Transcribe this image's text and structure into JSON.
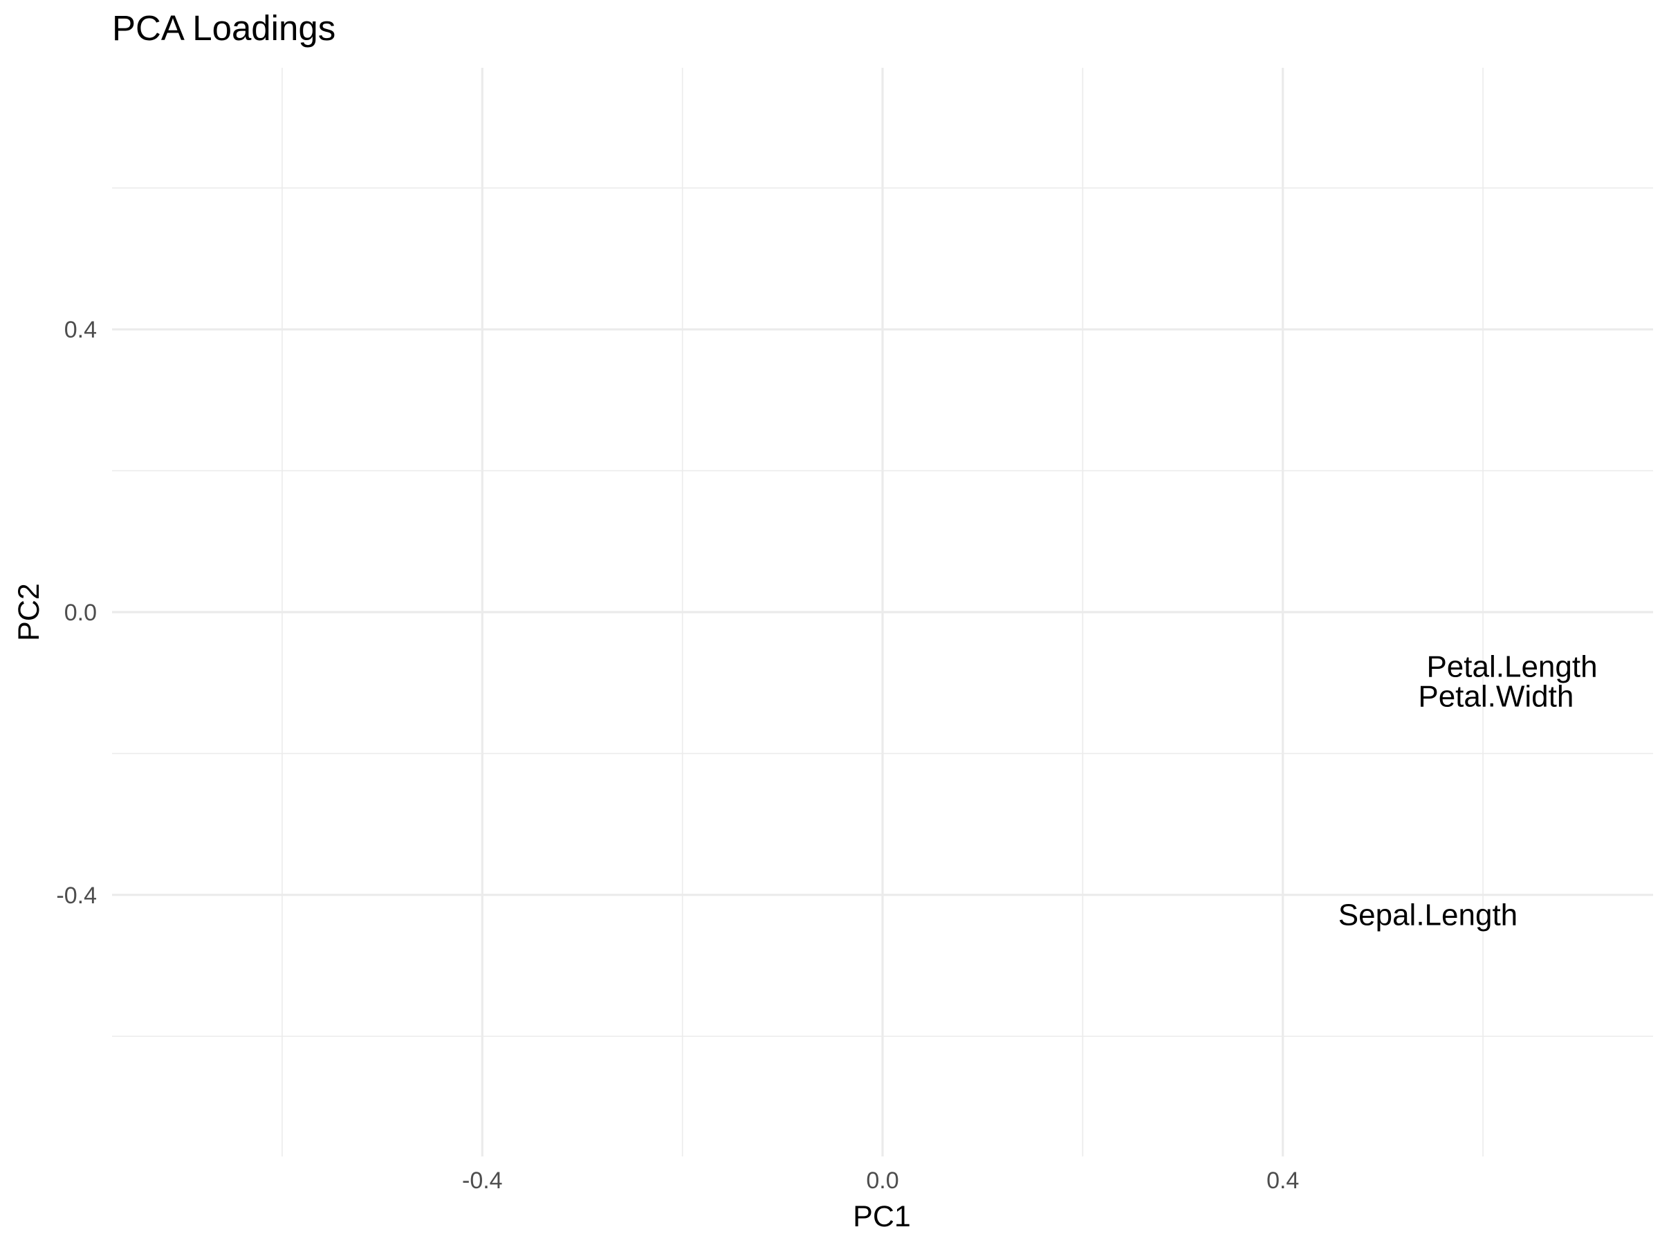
{
  "chart_data": {
    "type": "scatter",
    "title": "PCA Loadings",
    "xlabel": "PC1",
    "ylabel": "PC2",
    "xlim": [
      -0.77,
      0.77
    ],
    "ylim": [
      -0.77,
      0.77
    ],
    "x_ticks": [
      -0.4,
      0.0,
      0.4
    ],
    "y_ticks": [
      -0.4,
      0.0,
      0.4
    ],
    "x_tick_labels": [
      "-0.4",
      "0.0",
      "0.4"
    ],
    "y_tick_labels": [
      "-0.4",
      "0.0",
      "0.4"
    ],
    "grid": true,
    "legend": "none",
    "points": [
      {
        "label": "Petal.Length",
        "x": 0.629,
        "y": -0.077
      },
      {
        "label": "Petal.Width",
        "x": 0.613,
        "y": -0.119
      },
      {
        "label": "Sepal.Length",
        "x": 0.545,
        "y": -0.428
      }
    ],
    "colors": {
      "grid": "#ebebeb",
      "text": "#000000",
      "ticks": "#4d4d4d",
      "background": "#ffffff"
    }
  }
}
